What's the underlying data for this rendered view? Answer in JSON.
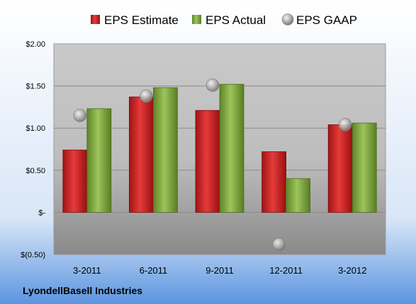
{
  "chart_data": {
    "type": "bar",
    "title": "",
    "company": "LyondellBasell Industries",
    "categories": [
      "3-2011",
      "6-2011",
      "9-2011",
      "12-2011",
      "3-2012"
    ],
    "series": [
      {
        "name": "EPS Estimate",
        "kind": "bar",
        "color": "#cc2020",
        "values": [
          0.74,
          1.37,
          1.21,
          0.72,
          1.04
        ]
      },
      {
        "name": "EPS Actual",
        "kind": "bar",
        "color": "#7fa83a",
        "values": [
          1.23,
          1.48,
          1.52,
          0.4,
          1.06
        ]
      },
      {
        "name": "EPS GAAP",
        "kind": "marker",
        "color": "#a0a0a0",
        "values": [
          1.15,
          1.38,
          1.51,
          -0.38,
          1.04
        ]
      }
    ],
    "ylim": [
      -0.5,
      2.0
    ],
    "yticks": [
      {
        "value": 2.0,
        "label": "$2.00"
      },
      {
        "value": 1.5,
        "label": "$1.50"
      },
      {
        "value": 1.0,
        "label": "$1.00"
      },
      {
        "value": 0.5,
        "label": "$0.50"
      },
      {
        "value": 0.0,
        "label": "$-"
      },
      {
        "value": -0.5,
        "label": "$(0.50)"
      }
    ],
    "grid": true,
    "legend_position": "top"
  }
}
